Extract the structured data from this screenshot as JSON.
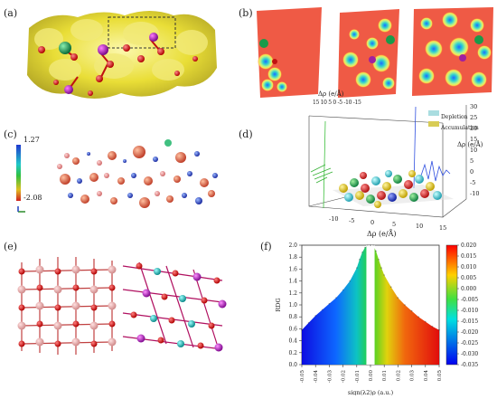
{
  "labels": {
    "a": "(a)",
    "b": "(b)",
    "c": "(c)",
    "d": "(d)",
    "e": "(e)",
    "f": "(f)"
  },
  "panel_c": {
    "scale_max": "1.27",
    "scale_min": "-2.08"
  },
  "panel_d": {
    "top_axis_label": "Δρ (e/Å)",
    "top_ticks": "15 10  5  0  -5  -10 -15",
    "right_axis_label": "Δρ (e/Å)",
    "bottom_axis_label": "Δρ (e/Å)",
    "right_ticks": [
      "30",
      "25",
      "20",
      "15",
      "10",
      "5",
      "0",
      "-5",
      "-10"
    ],
    "bottom_ticks": [
      "-10",
      "-5",
      "0",
      "5",
      "10",
      "15"
    ],
    "legend": [
      {
        "label": "Depletion",
        "color": "#a9dde0"
      },
      {
        "label": "Accumulation",
        "color": "#d8cc55"
      }
    ]
  },
  "chart_data": {
    "type": "scatter",
    "xlabel": "sign(λ2)ρ (a.u.)",
    "ylabel": "RDG",
    "xlim": [
      -0.05,
      0.05
    ],
    "ylim": [
      0,
      2.0
    ],
    "x_ticks": [
      "-0.05",
      "-0.04",
      "-0.03",
      "-0.02",
      "-0.01",
      "0.00",
      "0.01",
      "0.02",
      "0.03",
      "0.04",
      "0.05"
    ],
    "y_ticks": [
      "0.0",
      "0.2",
      "0.4",
      "0.6",
      "0.8",
      "1.0",
      "1.2",
      "1.4",
      "1.6",
      "1.8",
      "2.0"
    ],
    "colorbar_ticks": [
      "0.020",
      "0.015",
      "0.010",
      "0.005",
      "0.000",
      "-0.005",
      "-0.010",
      "-0.015",
      "-0.020",
      "-0.025",
      "-0.030",
      "-0.035"
    ],
    "colorbar_range": [
      -0.035,
      0.02
    ],
    "series": [
      {
        "x": [
          -0.05,
          -0.045,
          -0.04,
          -0.035,
          -0.03,
          -0.025,
          -0.02,
          -0.015,
          -0.01,
          -0.008,
          -0.006,
          -0.004,
          -0.002,
          0.0
        ],
        "y": [
          0.58,
          0.7,
          0.82,
          0.92,
          1.02,
          1.12,
          1.25,
          1.4,
          1.62,
          1.76,
          1.88,
          1.96,
          2.0,
          2.0
        ]
      },
      {
        "x": [
          0.0,
          0.002,
          0.004,
          0.006,
          0.008,
          0.01,
          0.015,
          0.02,
          0.025,
          0.03,
          0.035,
          0.04,
          0.045,
          0.05
        ],
        "y": [
          2.0,
          2.0,
          1.9,
          1.76,
          1.62,
          1.5,
          1.3,
          1.12,
          1.0,
          0.9,
          0.8,
          0.72,
          0.64,
          0.58
        ]
      }
    ]
  }
}
